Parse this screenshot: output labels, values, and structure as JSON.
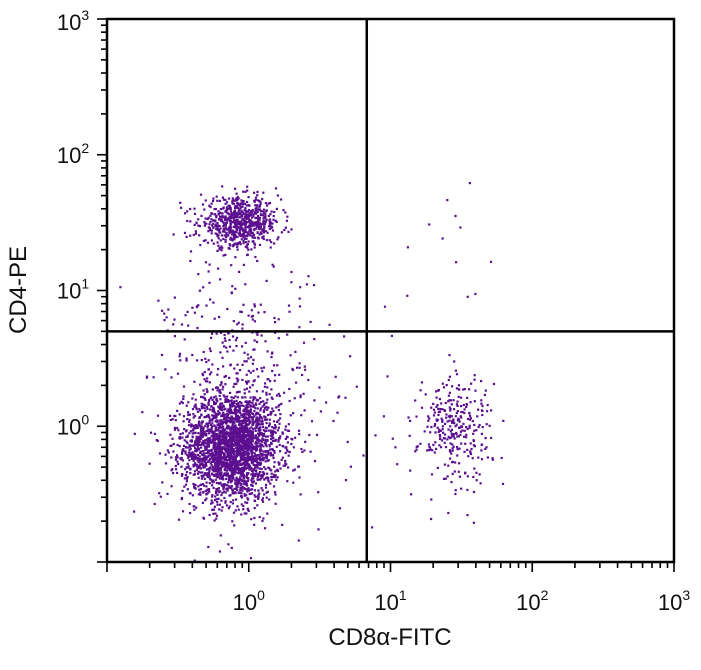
{
  "chart_data": {
    "type": "scatter",
    "title": "",
    "xlabel": "CD8α-FITC",
    "ylabel": "CD4-PE",
    "x_scale": "log",
    "y_scale": "log",
    "xlim": [
      0.1,
      1000
    ],
    "ylim": [
      0.1,
      1000
    ],
    "x_ticks": [
      {
        "value": 1,
        "base": "10",
        "exp": "0"
      },
      {
        "value": 10,
        "base": "10",
        "exp": "1"
      },
      {
        "value": 100,
        "base": "10",
        "exp": "2"
      },
      {
        "value": 1000,
        "base": "10",
        "exp": "3"
      }
    ],
    "y_ticks": [
      {
        "value": 1,
        "base": "10",
        "exp": "0"
      },
      {
        "value": 10,
        "base": "10",
        "exp": "1"
      },
      {
        "value": 100,
        "base": "10",
        "exp": "2"
      },
      {
        "value": 1000,
        "base": "10",
        "exp": "3"
      }
    ],
    "quadrant_gates": {
      "x": 6.8,
      "y": 5.0
    },
    "point_color": "#5b0f8f",
    "background_color": "#ffffff",
    "populations": [
      {
        "center": [
          0.75,
          0.72
        ],
        "spread_log": [
          0.17,
          0.2
        ],
        "count": 2600
      },
      {
        "center": [
          0.85,
          32
        ],
        "spread_log": [
          0.14,
          0.09
        ],
        "count": 700
      },
      {
        "center": [
          28,
          1.0
        ],
        "spread_log": [
          0.13,
          0.2
        ],
        "count": 300
      },
      {
        "center": [
          0.8,
          3.5
        ],
        "spread_log": [
          0.25,
          0.35
        ],
        "count": 220
      },
      {
        "center": [
          1.0,
          1.0
        ],
        "spread_log": [
          0.5,
          0.5
        ],
        "count": 160
      },
      {
        "center": [
          25,
          15
        ],
        "spread_log": [
          0.2,
          0.3
        ],
        "count": 12
      }
    ]
  }
}
